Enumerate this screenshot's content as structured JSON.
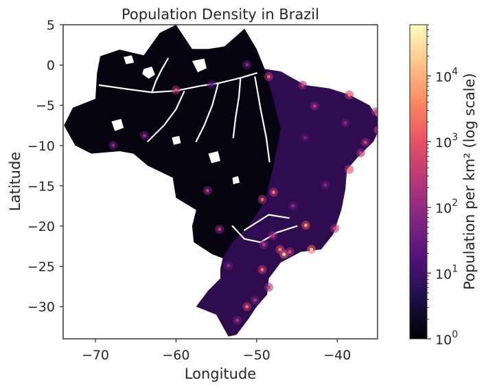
{
  "map": {
    "title": "Population Density in Brazil",
    "xlabel": "Longitude",
    "ylabel": "Latitude",
    "xlim": [
      -74,
      -35
    ],
    "ylim": [
      -34,
      5
    ],
    "x_ticks": [
      {
        "value": -70,
        "label": "−70"
      },
      {
        "value": -60,
        "label": "−60"
      },
      {
        "value": -50,
        "label": "−50"
      },
      {
        "value": -40,
        "label": "−40"
      }
    ],
    "y_ticks": [
      {
        "value": 5,
        "label": "5"
      },
      {
        "value": 0,
        "label": "0"
      },
      {
        "value": -5,
        "label": "−5"
      },
      {
        "value": -10,
        "label": "−10"
      },
      {
        "value": -15,
        "label": "−15"
      },
      {
        "value": -20,
        "label": "−20"
      },
      {
        "value": -25,
        "label": "−25"
      },
      {
        "value": -30,
        "label": "−30"
      }
    ],
    "background": "#ffffff",
    "colormap": "magma"
  },
  "colorbar": {
    "label": "Population per km² (log scale)",
    "scale": "log",
    "range": [
      1,
      60000
    ],
    "ticks": [
      {
        "value": 1,
        "base": "10",
        "exp": "0"
      },
      {
        "value": 10,
        "base": "10",
        "exp": "1"
      },
      {
        "value": 100,
        "base": "10",
        "exp": "2"
      },
      {
        "value": 1000,
        "base": "10",
        "exp": "3"
      },
      {
        "value": 10000,
        "base": "10",
        "exp": "4"
      }
    ],
    "colors": [
      "#000004",
      "#1c1044",
      "#4f127b",
      "#812581",
      "#b5367a",
      "#e55064",
      "#fb8761",
      "#fec287",
      "#fcfdbf"
    ]
  },
  "regions": {
    "land": [
      [
        -51.5,
        4.5
      ],
      [
        -50,
        2
      ],
      [
        -49,
        -0.5
      ],
      [
        -47,
        -0.8
      ],
      [
        -44,
        -2.5
      ],
      [
        -41,
        -2.9
      ],
      [
        -38.5,
        -3.7
      ],
      [
        -36,
        -5
      ],
      [
        -35,
        -6.5
      ],
      [
        -34.8,
        -8
      ],
      [
        -35.5,
        -9.5
      ],
      [
        -37.5,
        -11.5
      ],
      [
        -38.8,
        -13
      ],
      [
        -39,
        -15.5
      ],
      [
        -39.5,
        -18
      ],
      [
        -40.5,
        -21
      ],
      [
        -42,
        -22.9
      ],
      [
        -44.5,
        -23.2
      ],
      [
        -47,
        -24.5
      ],
      [
        -48.5,
        -26.5
      ],
      [
        -48.7,
        -28.5
      ],
      [
        -50,
        -30
      ],
      [
        -51,
        -31.5
      ],
      [
        -52.5,
        -33.5
      ],
      [
        -53.5,
        -33.7
      ],
      [
        -55,
        -31
      ],
      [
        -57.5,
        -30
      ],
      [
        -56,
        -28
      ],
      [
        -54.5,
        -26.5
      ],
      [
        -54.5,
        -25.3
      ],
      [
        -54.2,
        -24
      ],
      [
        -55.5,
        -23.5
      ],
      [
        -57.8,
        -22
      ],
      [
        -58,
        -20
      ],
      [
        -57.5,
        -18
      ],
      [
        -60,
        -16.5
      ],
      [
        -60.4,
        -14
      ],
      [
        -63.5,
        -12.5
      ],
      [
        -65.3,
        -11
      ],
      [
        -67,
        -10.7
      ],
      [
        -70.5,
        -11
      ],
      [
        -72.5,
        -10
      ],
      [
        -73.9,
        -7.5
      ],
      [
        -72.8,
        -5.3
      ],
      [
        -70,
        -4.2
      ],
      [
        -69.8,
        -1
      ],
      [
        -69.4,
        1.1
      ],
      [
        -67,
        1.9
      ],
      [
        -64,
        1.2
      ],
      [
        -62,
        4
      ],
      [
        -60,
        5
      ],
      [
        -58,
        2
      ],
      [
        -56,
        2
      ],
      [
        -54,
        2.3
      ],
      [
        -51.5,
        4.5
      ]
    ],
    "populated": [
      [
        -49,
        -0.5
      ],
      [
        -47,
        -0.8
      ],
      [
        -44,
        -2.5
      ],
      [
        -41,
        -2.9
      ],
      [
        -38.5,
        -3.7
      ],
      [
        -36,
        -5
      ],
      [
        -35,
        -6.5
      ],
      [
        -34.8,
        -8
      ],
      [
        -35.5,
        -9.5
      ],
      [
        -37.5,
        -11.5
      ],
      [
        -38.8,
        -13
      ],
      [
        -39,
        -15.5
      ],
      [
        -39.5,
        -18
      ],
      [
        -40.5,
        -21
      ],
      [
        -42,
        -22.9
      ],
      [
        -44.5,
        -23.2
      ],
      [
        -47,
        -24.5
      ],
      [
        -48.5,
        -26.5
      ],
      [
        -48.7,
        -28.5
      ],
      [
        -50,
        -30
      ],
      [
        -51,
        -31.5
      ],
      [
        -52.5,
        -33.5
      ],
      [
        -53.5,
        -33.7
      ],
      [
        -55,
        -31
      ],
      [
        -57.5,
        -30
      ],
      [
        -56,
        -28
      ],
      [
        -54.5,
        -26.5
      ],
      [
        -54.5,
        -25.3
      ],
      [
        -54.2,
        -24
      ],
      [
        -53,
        -22
      ],
      [
        -51,
        -20
      ],
      [
        -49,
        -17
      ],
      [
        -48,
        -13
      ],
      [
        -47,
        -8
      ],
      [
        -48,
        -4
      ]
    ],
    "populated_color": "#3a0f62",
    "rivers": [
      [
        [
          -69.5,
          -2.5
        ],
        [
          -66,
          -3
        ],
        [
          -63,
          -3.4
        ],
        [
          -60,
          -3.2
        ],
        [
          -57,
          -2.6
        ],
        [
          -54.5,
          -2.2
        ],
        [
          -52,
          -1.6
        ],
        [
          -50,
          -1
        ]
      ],
      [
        [
          -63,
          -3.4
        ],
        [
          -62.5,
          -2
        ],
        [
          -61.8,
          -0.6
        ],
        [
          -61,
          0.8
        ]
      ],
      [
        [
          -59,
          -3.3
        ],
        [
          -60,
          -5.5
        ],
        [
          -61.5,
          -7.5
        ],
        [
          -63.5,
          -9.5
        ]
      ],
      [
        [
          -54.8,
          -2.4
        ],
        [
          -55.5,
          -5
        ],
        [
          -56.5,
          -7.5
        ],
        [
          -57.5,
          -9.5
        ]
      ],
      [
        [
          -52,
          -1.6
        ],
        [
          -52.2,
          -4
        ],
        [
          -52.6,
          -6.5
        ],
        [
          -52.9,
          -9
        ]
      ],
      [
        [
          -50.2,
          -1.5
        ],
        [
          -49.5,
          -5.5
        ],
        [
          -48.8,
          -9
        ],
        [
          -48.4,
          -12
        ]
      ],
      [
        [
          -53,
          -20
        ],
        [
          -51.5,
          -21.6
        ],
        [
          -49.5,
          -22
        ],
        [
          -47.5,
          -20.8
        ],
        [
          -45,
          -20
        ]
      ],
      [
        [
          -51.5,
          -20.5
        ],
        [
          -48.5,
          -18.6
        ],
        [
          -46,
          -19
        ]
      ]
    ],
    "voids": [
      [
        [
          -64,
          -0.5
        ],
        [
          -63,
          -0.2
        ],
        [
          -62.6,
          -1.2
        ],
        [
          -63.4,
          -1.7
        ],
        [
          -64.2,
          -1.1
        ]
      ],
      [
        [
          -58,
          0.5
        ],
        [
          -56.5,
          0.8
        ],
        [
          -56.2,
          -0.4
        ],
        [
          -57.3,
          -0.9
        ]
      ],
      [
        [
          -68,
          -7
        ],
        [
          -66.8,
          -6.7
        ],
        [
          -66.5,
          -7.8
        ],
        [
          -67.6,
          -8.2
        ]
      ],
      [
        [
          -56,
          -11
        ],
        [
          -54.8,
          -10.7
        ],
        [
          -54.5,
          -11.9
        ],
        [
          -55.6,
          -12.2
        ]
      ],
      [
        [
          -60.5,
          -9
        ],
        [
          -59.6,
          -8.8
        ],
        [
          -59.4,
          -9.7
        ],
        [
          -60.3,
          -9.9
        ]
      ],
      [
        [
          -53,
          -14
        ],
        [
          -52.3,
          -13.8
        ],
        [
          -52.1,
          -14.6
        ],
        [
          -52.9,
          -14.8
        ]
      ],
      [
        [
          -66.5,
          1
        ],
        [
          -65.5,
          1.2
        ],
        [
          -65.2,
          0.3
        ],
        [
          -66.2,
          0.1
        ]
      ]
    ],
    "void_color": "#ffffff",
    "hotspots": [
      {
        "lon": -46.6,
        "lat": -23.5,
        "level": 0.92
      },
      {
        "lon": -43.2,
        "lat": -22.9,
        "level": 0.9
      },
      {
        "lon": -43.9,
        "lat": -19.9,
        "level": 0.8
      },
      {
        "lon": -47.9,
        "lat": -15.8,
        "level": 0.7
      },
      {
        "lon": -49.3,
        "lat": -16.7,
        "level": 0.65
      },
      {
        "lon": -38.5,
        "lat": -3.7,
        "level": 0.72
      },
      {
        "lon": -34.9,
        "lat": -8.05,
        "level": 0.75
      },
      {
        "lon": -38.5,
        "lat": -12.97,
        "level": 0.75
      },
      {
        "lon": -35.2,
        "lat": -5.8,
        "level": 0.6
      },
      {
        "lon": -44.3,
        "lat": -2.5,
        "level": 0.55
      },
      {
        "lon": -48.5,
        "lat": -1.45,
        "level": 0.65
      },
      {
        "lon": -60,
        "lat": -3.1,
        "level": 0.6
      },
      {
        "lon": -49.3,
        "lat": -25.4,
        "level": 0.68
      },
      {
        "lon": -48.5,
        "lat": -27.6,
        "level": 0.55
      },
      {
        "lon": -51.2,
        "lat": -30.0,
        "level": 0.68
      },
      {
        "lon": -42.8,
        "lat": -5.1,
        "level": 0.5
      },
      {
        "lon": -54.6,
        "lat": -20.4,
        "level": 0.5
      },
      {
        "lon": -56.1,
        "lat": -15.6,
        "level": 0.5
      },
      {
        "lon": -63.9,
        "lat": -8.76,
        "level": 0.42
      },
      {
        "lon": -67.8,
        "lat": -9.97,
        "level": 0.4
      },
      {
        "lon": -40.3,
        "lat": -20.3,
        "level": 0.6
      },
      {
        "lon": -47.1,
        "lat": -22.9,
        "level": 0.72
      },
      {
        "lon": -45.9,
        "lat": -23.2,
        "level": 0.6
      },
      {
        "lon": -49.1,
        "lat": -22.3,
        "level": 0.5
      },
      {
        "lon": -48.0,
        "lat": -21.2,
        "level": 0.5
      },
      {
        "lon": -36.5,
        "lat": -9.6,
        "level": 0.55
      },
      {
        "lon": -37.1,
        "lat": -10.9,
        "level": 0.55
      },
      {
        "lon": -39.0,
        "lat": -7.2,
        "level": 0.4
      },
      {
        "lon": -52.4,
        "lat": -31.7,
        "level": 0.45
      },
      {
        "lon": -50.2,
        "lat": -29.2,
        "level": 0.45
      },
      {
        "lon": -53.5,
        "lat": -24.9,
        "level": 0.4
      },
      {
        "lon": -55.6,
        "lat": -2.4,
        "level": 0.35
      },
      {
        "lon": -41.5,
        "lat": -14.9,
        "level": 0.4
      },
      {
        "lon": -45.5,
        "lat": -17.5,
        "level": 0.4
      },
      {
        "lon": -44.0,
        "lat": -9.0,
        "level": 0.35
      },
      {
        "lon": -51.2,
        "lat": 0.04,
        "level": 0.4
      }
    ]
  }
}
